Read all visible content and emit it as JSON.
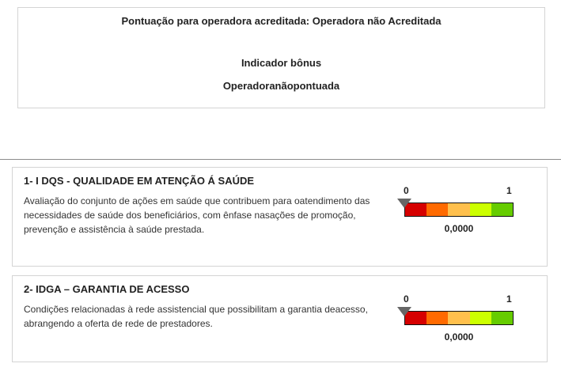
{
  "header": {
    "accreditation_text": "Pontuação para operadora acreditada: Operadora não Acreditada",
    "bonus_title": "Indicador bônus",
    "bonus_value": "Operadoranãopontuada"
  },
  "indicators": [
    {
      "title": "1- I DQS - QUALIDADE EM ATENÇÃO Á SAÚDE",
      "description": "Avaliação do conjunto de ações em saúde que contribuem para oatendimento das necessidades de saúde dos beneficiários, com ênfase nasações de promoção, prevenção e assistência à saúde prestada.",
      "scale_min": "0",
      "scale_max": "1",
      "score": "0,0000",
      "score_fraction": 0
    },
    {
      "title": "2- IDGA – GARANTIA DE ACESSO",
      "description": "Condições relacionadas à rede assistencial que possibilitam a garantia deacesso, abrangendo a oferta de rede de prestadores.",
      "scale_min": "0",
      "scale_max": "1",
      "score": "0,0000",
      "score_fraction": 0
    }
  ],
  "scale_colors": [
    "#d60000",
    "#ff6a00",
    "#ffc04d",
    "#ccff00",
    "#66cc00"
  ],
  "marker_color": "#666666"
}
